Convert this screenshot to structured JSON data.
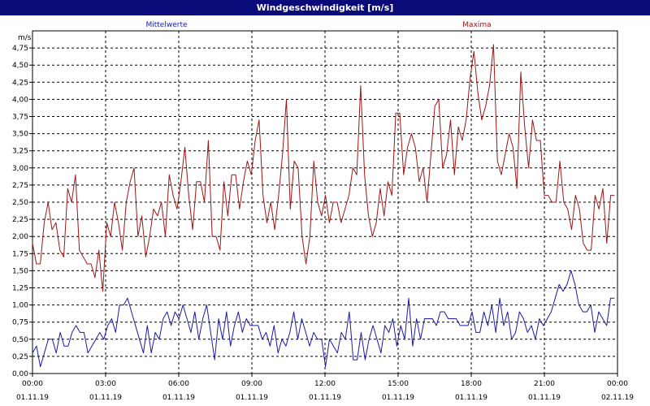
{
  "window": {
    "title": "Windgeschwindigkeit [m/s]"
  },
  "chart_data": {
    "type": "line",
    "title": "Windgeschwindigkeit [m/s]",
    "ylabel": "m/s",
    "xlabel": "",
    "ylim": [
      0,
      5.0
    ],
    "yticks": [
      0,
      0.25,
      0.5,
      0.75,
      1.0,
      1.25,
      1.5,
      1.75,
      2.0,
      2.25,
      2.5,
      2.75,
      3.0,
      3.25,
      3.5,
      3.75,
      4.0,
      4.25,
      4.5,
      4.75
    ],
    "ytick_labels": [
      "0,00",
      "0,25",
      "0,50",
      "0,75",
      "1,00",
      "1,25",
      "1,50",
      "1,75",
      "2,00",
      "2,25",
      "2,50",
      "2,75",
      "3,00",
      "3,25",
      "3,50",
      "3,75",
      "4,00",
      "4,25",
      "4,50",
      "4,75"
    ],
    "xlim_hours": [
      0,
      24
    ],
    "xticks": [
      {
        "hour": 0,
        "time": "00:00",
        "date": "01.11.19"
      },
      {
        "hour": 3,
        "time": "03:00",
        "date": "01.11.19"
      },
      {
        "hour": 6,
        "time": "06:00",
        "date": "01.11.19"
      },
      {
        "hour": 9,
        "time": "09:00",
        "date": "01.11.19"
      },
      {
        "hour": 12,
        "time": "12:00",
        "date": "01.11.19"
      },
      {
        "hour": 15,
        "time": "15:00",
        "date": "01.11.19"
      },
      {
        "hour": 18,
        "time": "18:00",
        "date": "01.11.19"
      },
      {
        "hour": 21,
        "time": "21:00",
        "date": "01.11.19"
      },
      {
        "hour": 24,
        "time": "00:00",
        "date": "02.11.19"
      }
    ],
    "grid": true,
    "series": [
      {
        "name": "Mittelwerte",
        "color": "#1a1aa8",
        "values": [
          0.3,
          0.4,
          0.1,
          0.3,
          0.5,
          0.5,
          0.3,
          0.6,
          0.4,
          0.4,
          0.6,
          0.7,
          0.6,
          0.6,
          0.3,
          0.4,
          0.5,
          0.6,
          0.5,
          0.7,
          0.8,
          0.6,
          1.0,
          1.0,
          1.1,
          0.9,
          0.7,
          0.5,
          0.3,
          0.7,
          0.3,
          0.6,
          0.5,
          0.8,
          0.9,
          0.7,
          0.9,
          0.8,
          1.0,
          0.8,
          0.6,
          0.9,
          0.5,
          0.8,
          1.0,
          0.6,
          0.2,
          0.8,
          0.5,
          0.9,
          0.4,
          0.7,
          0.9,
          0.6,
          0.8,
          0.7,
          0.7,
          0.7,
          0.5,
          0.6,
          0.4,
          0.7,
          0.3,
          0.5,
          0.4,
          0.6,
          0.9,
          0.5,
          0.8,
          0.6,
          0.4,
          0.6,
          0.5,
          0.5,
          0.1,
          0.5,
          0.4,
          0.3,
          0.6,
          0.5,
          0.9,
          0.2,
          0.2,
          0.6,
          0.2,
          0.5,
          0.7,
          0.5,
          0.3,
          0.7,
          0.6,
          0.8,
          0.4,
          0.7,
          0.5,
          1.1,
          0.4,
          0.8,
          0.5,
          0.8,
          0.8,
          0.8,
          0.7,
          0.9,
          0.9,
          0.8,
          0.8,
          0.8,
          0.7,
          0.7,
          0.7,
          0.9,
          0.6,
          0.6,
          0.9,
          0.7,
          1.0,
          0.6,
          1.1,
          0.7,
          0.9,
          0.5,
          0.6,
          0.9,
          0.8,
          0.6,
          0.7,
          0.5,
          0.8,
          0.7,
          0.8,
          0.9,
          1.1,
          1.3,
          1.2,
          1.3,
          1.5,
          1.3,
          1.0,
          0.9,
          0.9,
          1.0,
          0.6,
          0.9,
          0.8,
          0.7,
          1.1,
          1.1
        ],
        "x_range_hours": [
          0,
          23.88
        ]
      },
      {
        "name": "Maxima",
        "color": "#a01414",
        "values": [
          1.9,
          1.6,
          1.6,
          2.2,
          2.5,
          2.1,
          2.2,
          1.8,
          1.7,
          2.7,
          2.5,
          2.9,
          1.8,
          1.7,
          1.6,
          1.6,
          1.4,
          1.8,
          1.2,
          2.2,
          2.0,
          2.5,
          2.2,
          1.8,
          2.5,
          2.8,
          3.0,
          2.0,
          2.3,
          1.7,
          2.0,
          2.4,
          2.3,
          2.5,
          2.0,
          2.9,
          2.6,
          2.4,
          2.8,
          3.3,
          2.6,
          2.1,
          2.8,
          2.8,
          2.5,
          3.4,
          2.0,
          2.0,
          1.8,
          2.8,
          2.3,
          2.9,
          2.9,
          2.4,
          2.8,
          3.1,
          2.9,
          3.4,
          3.7,
          2.6,
          2.2,
          2.5,
          2.1,
          2.6,
          3.2,
          4.0,
          2.4,
          3.1,
          3.0,
          2.0,
          1.6,
          2.0,
          3.1,
          2.5,
          2.3,
          2.6,
          2.2,
          2.5,
          2.5,
          2.2,
          2.4,
          2.6,
          3.0,
          2.9,
          4.2,
          2.9,
          2.3,
          2.0,
          2.2,
          2.7,
          2.3,
          2.8,
          2.6,
          3.8,
          3.8,
          2.9,
          3.3,
          3.5,
          3.3,
          2.8,
          3.0,
          2.5,
          3.2,
          3.9,
          4.0,
          3.0,
          3.2,
          3.7,
          2.9,
          3.6,
          3.4,
          3.7,
          4.3,
          4.7,
          4.1,
          3.7,
          3.9,
          4.2,
          4.8,
          3.1,
          2.9,
          3.2,
          3.5,
          3.3,
          2.7,
          4.4,
          3.6,
          3.0,
          3.7,
          3.4,
          3.4,
          2.6,
          2.6,
          2.5,
          2.5,
          3.1,
          2.5,
          2.4,
          2.1,
          2.6,
          2.4,
          1.9,
          1.8,
          1.8,
          2.6,
          2.4,
          2.7,
          1.9,
          2.6,
          2.6
        ],
        "x_range_hours": [
          0,
          23.88
        ]
      }
    ]
  }
}
